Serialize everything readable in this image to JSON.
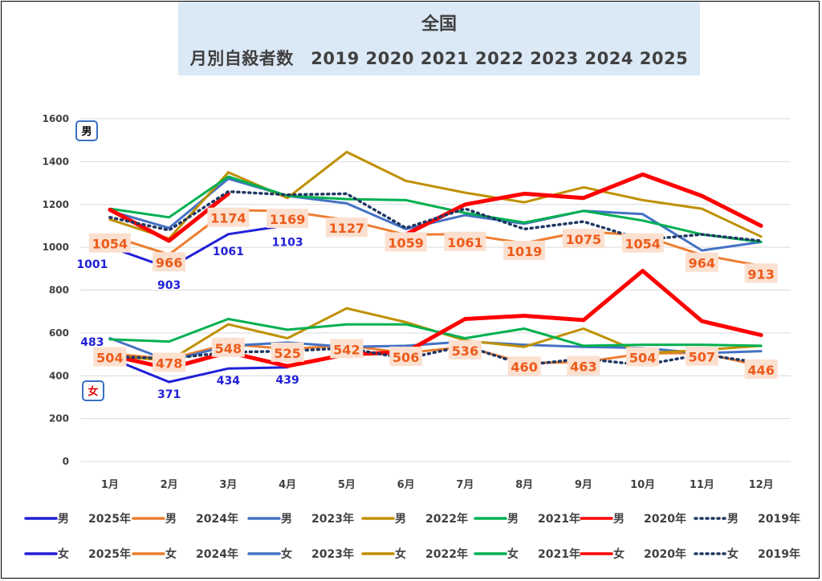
{
  "title": {
    "main": "全国",
    "sub": "月別自殺者数　2019  2020  2021  2022  2023  2024  2025"
  },
  "gender_labels": {
    "male": "男",
    "female": "女"
  },
  "chart_data": {
    "type": "line",
    "categories": [
      "1月",
      "2月",
      "3月",
      "4月",
      "5月",
      "6月",
      "7月",
      "8月",
      "9月",
      "10月",
      "11月",
      "12月"
    ],
    "ylim": [
      0,
      1600
    ],
    "yticks": [
      0,
      200,
      400,
      600,
      800,
      1000,
      1200,
      1400,
      1600
    ],
    "grid": true,
    "legend_position": "bottom",
    "series": [
      {
        "name": "男　2025年",
        "gender": "男",
        "year": "2025年",
        "color": "#2020d8",
        "width": 3,
        "dash": "",
        "values": [
          1001,
          903,
          1061,
          1103,
          null,
          null,
          null,
          null,
          null,
          null,
          null,
          null
        ]
      },
      {
        "name": "男　2024年",
        "gender": "男",
        "year": "2024年",
        "color": "#ed7d31",
        "width": 3,
        "dash": "",
        "values": [
          1054,
          966,
          1174,
          1169,
          1127,
          1059,
          1061,
          1019,
          1075,
          1054,
          964,
          913
        ]
      },
      {
        "name": "男　2023年",
        "gender": "男",
        "year": "2023年",
        "color": "#4472c4",
        "width": 3,
        "dash": "",
        "values": [
          1170,
          1090,
          1320,
          1240,
          1205,
          1085,
          1150,
          1110,
          1170,
          1155,
          985,
          1025
        ]
      },
      {
        "name": "男　2022年",
        "gender": "男",
        "year": "2022年",
        "color": "#bf9000",
        "width": 3,
        "dash": "",
        "values": [
          1130,
          1040,
          1350,
          1230,
          1445,
          1310,
          1255,
          1210,
          1280,
          1220,
          1180,
          1050
        ]
      },
      {
        "name": "男　2021年",
        "gender": "男",
        "year": "2021年",
        "color": "#00b050",
        "width": 3,
        "dash": "",
        "values": [
          1180,
          1140,
          1330,
          1240,
          1225,
          1220,
          1160,
          1115,
          1170,
          1125,
          1060,
          1025
        ]
      },
      {
        "name": "男　2020年",
        "gender": "男",
        "year": "2020年",
        "color": "#ff0000",
        "width": 5,
        "dash": "",
        "values": [
          1175,
          1030,
          1250,
          null,
          null,
          1060,
          1200,
          1250,
          1230,
          1340,
          1240,
          1100
        ]
      },
      {
        "name": "男　2019年",
        "gender": "男",
        "year": "2019年",
        "color": "#1f3864",
        "width": 3.5,
        "dash": "2,5",
        "values": [
          1140,
          1080,
          1260,
          1245,
          1250,
          1090,
          1180,
          1085,
          1120,
          1035,
          1060,
          1030
        ]
      },
      {
        "name": "女　2025年",
        "gender": "女",
        "year": "2025年",
        "color": "#2020d8",
        "width": 3,
        "dash": "",
        "values": [
          483,
          371,
          434,
          439,
          null,
          null,
          null,
          null,
          null,
          null,
          null,
          null
        ]
      },
      {
        "name": "女　2024年",
        "gender": "女",
        "year": "2024年",
        "color": "#ed7d31",
        "width": 3,
        "dash": "",
        "values": [
          504,
          478,
          548,
          525,
          542,
          506,
          536,
          460,
          463,
          504,
          507,
          446
        ]
      },
      {
        "name": "女　2023年",
        "gender": "女",
        "year": "2023年",
        "color": "#4472c4",
        "width": 3,
        "dash": "",
        "values": [
          575,
          470,
          540,
          555,
          535,
          540,
          560,
          545,
          535,
          530,
          505,
          515
        ]
      },
      {
        "name": "女　2022年",
        "gender": "女",
        "year": "2022年",
        "color": "#bf9000",
        "width": 3,
        "dash": "",
        "values": [
          495,
          470,
          640,
          575,
          715,
          650,
          565,
          535,
          620,
          505,
          520,
          540
        ]
      },
      {
        "name": "女　2021年",
        "gender": "女",
        "year": "2021年",
        "color": "#00b050",
        "width": 3,
        "dash": "",
        "values": [
          570,
          560,
          665,
          615,
          640,
          640,
          575,
          620,
          540,
          545,
          545,
          540
        ]
      },
      {
        "name": "女　2020年",
        "gender": "女",
        "year": "2020年",
        "color": "#ff0000",
        "width": 5,
        "dash": "",
        "values": [
          495,
          435,
          510,
          445,
          500,
          510,
          665,
          680,
          660,
          890,
          655,
          590
        ]
      },
      {
        "name": "女　2019年",
        "gender": "女",
        "year": "2019年",
        "color": "#1f3864",
        "width": 3.5,
        "dash": "2,5",
        "values": [
          490,
          480,
          510,
          515,
          530,
          480,
          540,
          450,
          480,
          450,
          500,
          460
        ]
      }
    ],
    "data_labels": [
      {
        "series": "男　2025年",
        "color": "#2020d8",
        "style": "plain",
        "values": [
          1001,
          903,
          1061,
          1103,
          null,
          null,
          null,
          null,
          null,
          null,
          null,
          null
        ]
      },
      {
        "series": "男　2024年",
        "color": "#ed5b1a",
        "style": "boxed",
        "values": [
          1054,
          966,
          1174,
          1169,
          1127,
          1059,
          1061,
          1019,
          1075,
          1054,
          964,
          913
        ]
      },
      {
        "series": "女　2025年",
        "color": "#2020d8",
        "style": "plain",
        "values": [
          483,
          371,
          434,
          439,
          null,
          null,
          null,
          null,
          null,
          null,
          null,
          null
        ]
      },
      {
        "series": "女　2024年",
        "color": "#ed5b1a",
        "style": "boxed",
        "values": [
          504,
          478,
          548,
          525,
          542,
          506,
          536,
          460,
          463,
          504,
          507,
          446
        ]
      }
    ]
  }
}
